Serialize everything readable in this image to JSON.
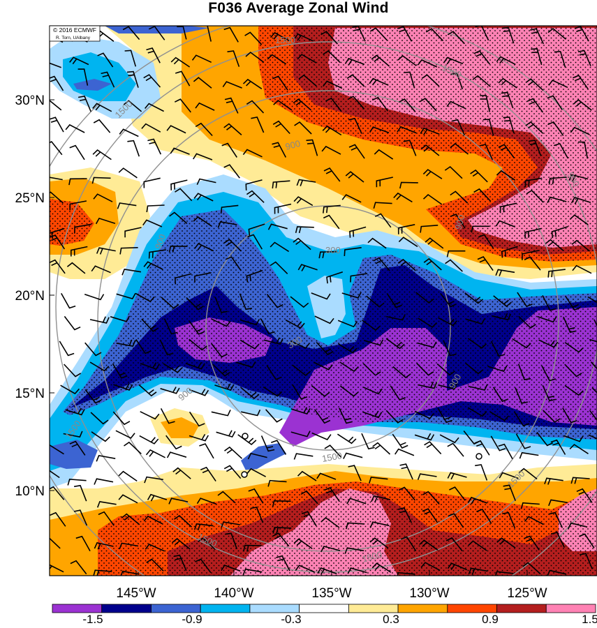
{
  "title": "F036 Average Zonal Wind",
  "credit": {
    "line1": "© 2016 ECMWF",
    "line2": "R. Torn, UAlbany"
  },
  "lat_ticks": [
    "30°N",
    "25°N",
    "20°N",
    "15°N",
    "10°N"
  ],
  "lon_ticks": [
    "145°W",
    "140°W",
    "135°W",
    "130°W",
    "125°W"
  ],
  "contour_labels": [
    "1500",
    "1500",
    "1500",
    "900",
    "900",
    "900",
    "900",
    "900",
    "300",
    "300",
    "900",
    "1500",
    "1500",
    "1500",
    "1500"
  ],
  "colorbar": {
    "labels": [
      "-1.5",
      "-0.9",
      "-0.3",
      "0.3",
      "0.9",
      "1.5"
    ],
    "colors": [
      "#9b32d2",
      "#00008c",
      "#3c64d2",
      "#00b4f0",
      "#aadcff",
      "#ffffff",
      "#ffeb96",
      "#ffa500",
      "#ff4600",
      "#b41e1e",
      "#ff82b4"
    ]
  },
  "colors": {
    "neg3": "#9b32d2",
    "neg2": "#00008c",
    "neg1b": "#3c64d2",
    "neg1a": "#00b4f0",
    "neg0": "#aadcff",
    "pos0": "#ffeb96",
    "pos1": "#ffa500",
    "pos2": "#ff4600",
    "pos3": "#b41e1e",
    "pos4": "#ff82b4",
    "contour": "#909090"
  }
}
